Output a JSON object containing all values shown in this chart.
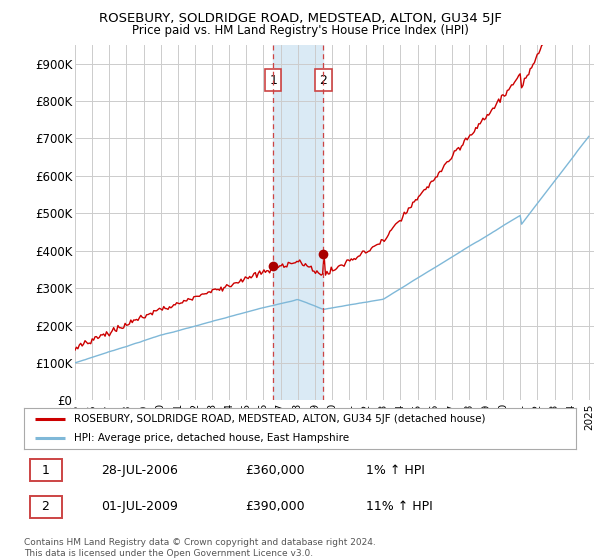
{
  "title": "ROSEBURY, SOLDRIDGE ROAD, MEDSTEAD, ALTON, GU34 5JF",
  "subtitle": "Price paid vs. HM Land Registry's House Price Index (HPI)",
  "legend_line1": "ROSEBURY, SOLDRIDGE ROAD, MEDSTEAD, ALTON, GU34 5JF (detached house)",
  "legend_line2": "HPI: Average price, detached house, East Hampshire",
  "sale1_date": "28-JUL-2006",
  "sale1_price": "£360,000",
  "sale1_hpi": "1% ↑ HPI",
  "sale2_date": "01-JUL-2009",
  "sale2_price": "£390,000",
  "sale2_hpi": "11% ↑ HPI",
  "footnote": "Contains HM Land Registry data © Crown copyright and database right 2024.\nThis data is licensed under the Open Government Licence v3.0.",
  "hpi_color": "#7fb8d8",
  "price_color": "#cc0000",
  "sale_marker_color": "#aa0000",
  "shaded_region_color": "#daeaf5",
  "vline_color": "#cc4444",
  "grid_color": "#cccccc",
  "background_color": "#ffffff",
  "ylim": [
    0,
    950000
  ],
  "yticks": [
    0,
    100000,
    200000,
    300000,
    400000,
    500000,
    600000,
    700000,
    800000,
    900000
  ],
  "ytick_labels": [
    "£0",
    "£100K",
    "£200K",
    "£300K",
    "£400K",
    "£500K",
    "£600K",
    "£700K",
    "£800K",
    "£900K"
  ],
  "sale1_year": 2006.57,
  "sale1_value": 360000,
  "sale2_year": 2009.5,
  "sale2_value": 390000,
  "xmin": 1995.0,
  "xmax": 2025.3
}
